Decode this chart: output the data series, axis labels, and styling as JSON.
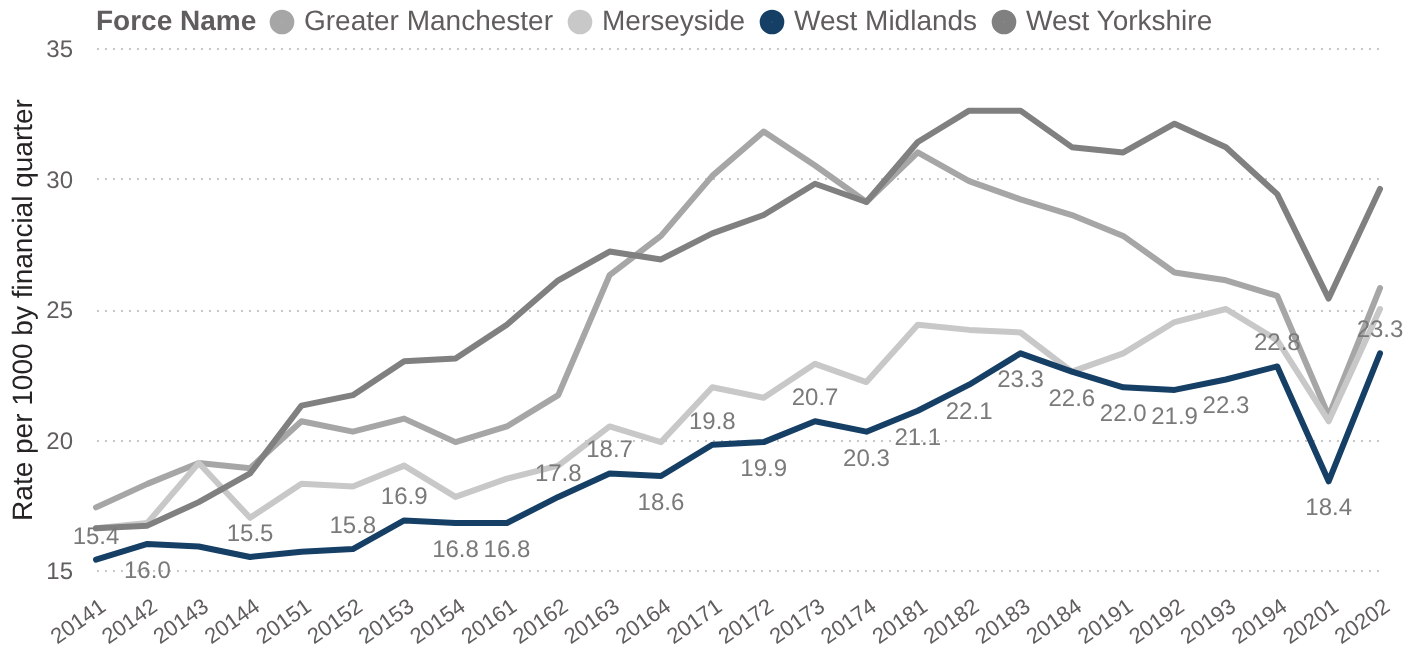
{
  "chart_data": {
    "type": "line",
    "ylabel": "Rate per 1000 by financial quarter",
    "legend_title": "Force Name",
    "legend": "top left",
    "grid": "y",
    "line_style": "solid",
    "categories": [
      "20141",
      "20142",
      "20143",
      "20144",
      "20151",
      "20152",
      "20153",
      "20154",
      "20161",
      "20162",
      "20163",
      "20164",
      "20171",
      "20172",
      "20173",
      "20174",
      "20181",
      "20182",
      "20183",
      "20184",
      "20191",
      "20192",
      "20193",
      "20194",
      "20201",
      "20202"
    ],
    "ylim": [
      15,
      35
    ],
    "yticks": [
      15,
      20,
      25,
      30,
      35
    ],
    "series": [
      {
        "name": "Greater Manchester",
        "color": "#a6a6a6",
        "values": [
          17.4,
          18.3,
          19.1,
          18.9,
          20.7,
          20.3,
          20.8,
          19.9,
          20.5,
          21.7,
          26.3,
          27.8,
          30.1,
          31.8,
          30.5,
          29.1,
          31.0,
          29.9,
          29.2,
          28.6,
          27.8,
          26.4,
          26.1,
          25.5,
          20.9,
          25.8
        ]
      },
      {
        "name": "Merseyside",
        "color": "#c8c8c8",
        "values": [
          16.6,
          16.8,
          19.1,
          17.0,
          18.3,
          18.2,
          19.0,
          17.8,
          18.5,
          19.0,
          20.5,
          19.9,
          22.0,
          21.6,
          22.9,
          22.2,
          24.4,
          24.2,
          24.1,
          22.6,
          23.3,
          24.5,
          25.0,
          23.8,
          20.7,
          25.0
        ]
      },
      {
        "name": "West Midlands",
        "color": "#163f66",
        "values": [
          15.4,
          16.0,
          15.9,
          15.5,
          15.7,
          15.8,
          16.9,
          16.8,
          16.8,
          17.8,
          18.7,
          18.6,
          19.8,
          19.9,
          20.7,
          20.3,
          21.1,
          22.1,
          23.3,
          22.6,
          22.0,
          21.9,
          22.3,
          22.8,
          18.4,
          23.3
        ],
        "value_labels": [
          "15.4",
          "16.0",
          null,
          "15.5",
          null,
          "15.8",
          "16.9",
          "16.8",
          "16.8",
          "17.8",
          "18.7",
          "18.6",
          "19.8",
          "19.9",
          "20.7",
          "20.3",
          "21.1",
          "22.1",
          "23.3",
          "22.6",
          "22.0",
          "21.9",
          "22.3",
          "22.8",
          "18.4",
          "23.3"
        ]
      },
      {
        "name": "West Yorkshire",
        "color": "#808080",
        "values": [
          16.6,
          16.7,
          17.6,
          18.7,
          21.3,
          21.7,
          23.0,
          23.1,
          24.4,
          26.1,
          27.2,
          26.9,
          27.9,
          28.6,
          29.8,
          29.1,
          31.4,
          32.6,
          32.6,
          31.2,
          31.0,
          32.1,
          31.2,
          29.4,
          25.4,
          29.6
        ]
      }
    ]
  }
}
